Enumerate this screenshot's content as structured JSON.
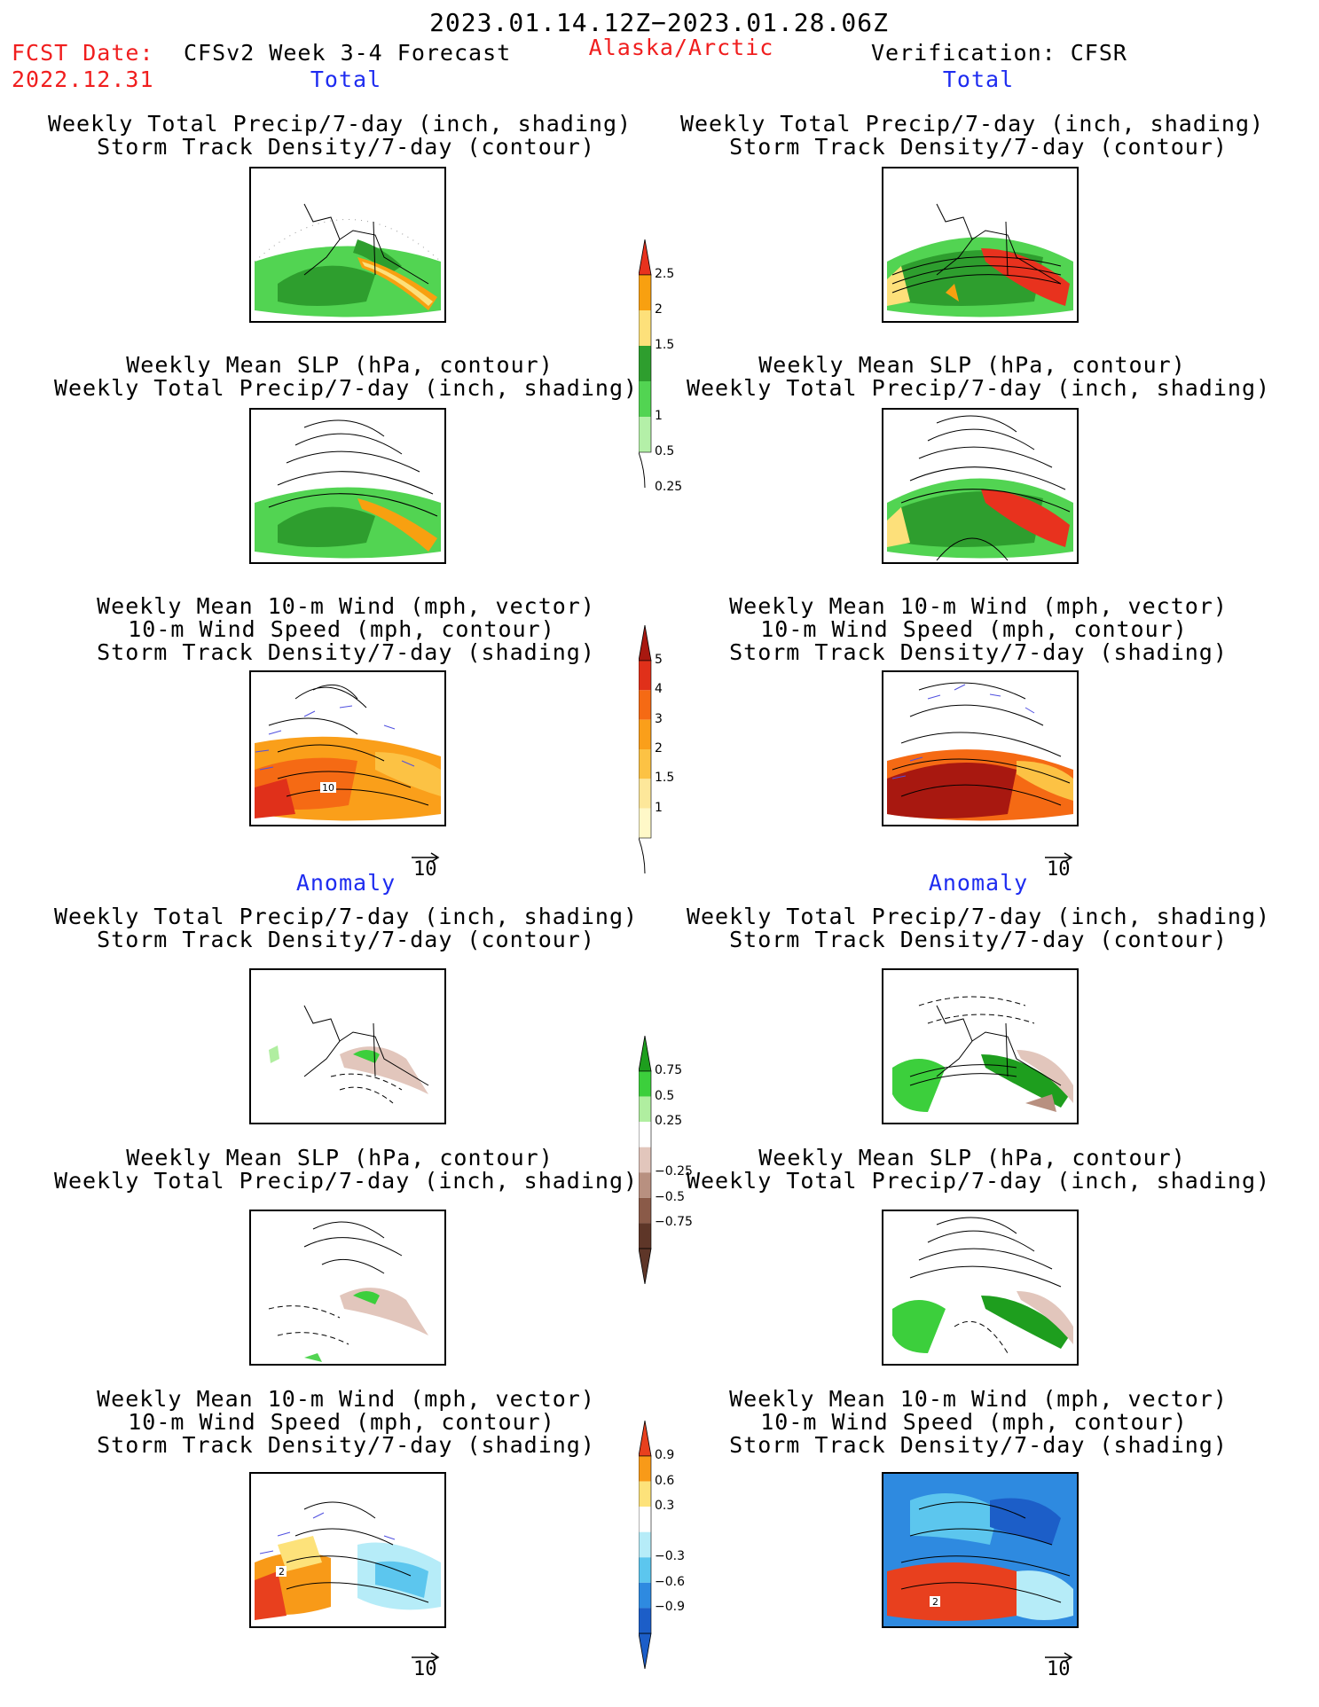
{
  "header": {
    "date_range": "2023.01.14.12Z−2023.01.28.06Z",
    "fcst_label": "FCST Date:",
    "fcst_date": "2022.12.31",
    "forecast_name": "CFSv2 Week 3-4 Forecast",
    "region": "Alaska/Arctic",
    "verification": "Verification: CFSR"
  },
  "sections": {
    "total_label": "Total",
    "anomaly_label": "Anomaly"
  },
  "titles": {
    "precip": "Weekly Total Precip/7-day (inch, shading)",
    "storm_contour": "Storm Track Density/7-day (contour)",
    "slp": "Weekly Mean SLP (hPa, contour)",
    "wind_vec": "Weekly Mean 10-m Wind (mph, vector)",
    "wind_speed": "10-m Wind Speed (mph, contour)",
    "storm_shading": "Storm Track Density/7-day (shading)"
  },
  "vector_reference": "10",
  "colorbars": {
    "precip_total": {
      "labels": [
        "2.5",
        "2",
        "1.5",
        "1",
        "0.5",
        "0.25"
      ],
      "colors": [
        "#e8321e",
        "#f8a010",
        "#fde07a",
        "#2e9e2e",
        "#52d452",
        "#b4f0a8"
      ]
    },
    "storm_total": {
      "labels": [
        "5",
        "4",
        "3",
        "2",
        "1.5",
        "1"
      ],
      "colors": [
        "#a81810",
        "#e0301a",
        "#f56a14",
        "#fa9f1a",
        "#fcc244",
        "#fde79a",
        "#fff8c8"
      ]
    },
    "precip_anom": {
      "labels": [
        "0.75",
        "0.5",
        "0.25",
        "−0.25",
        "−0.5",
        "−0.75"
      ],
      "colors": [
        "#1e9e1e",
        "#3ccf3c",
        "#b0eea0",
        "#ffffff",
        "#e2c6bc",
        "#b89080",
        "#8a5a48",
        "#5e3628"
      ]
    },
    "storm_anom": {
      "labels": [
        "0.9",
        "0.6",
        "0.3",
        "−0.3",
        "−0.6",
        "−0.9"
      ],
      "colors": [
        "#e8401e",
        "#f89a18",
        "#fde27a",
        "#ffffff",
        "#b6ecf8",
        "#5cc6ee",
        "#2e8ae0",
        "#1c5ec8"
      ]
    }
  },
  "panel_labels": {
    "contour_label_10": "10",
    "contour_label_2": "2"
  }
}
